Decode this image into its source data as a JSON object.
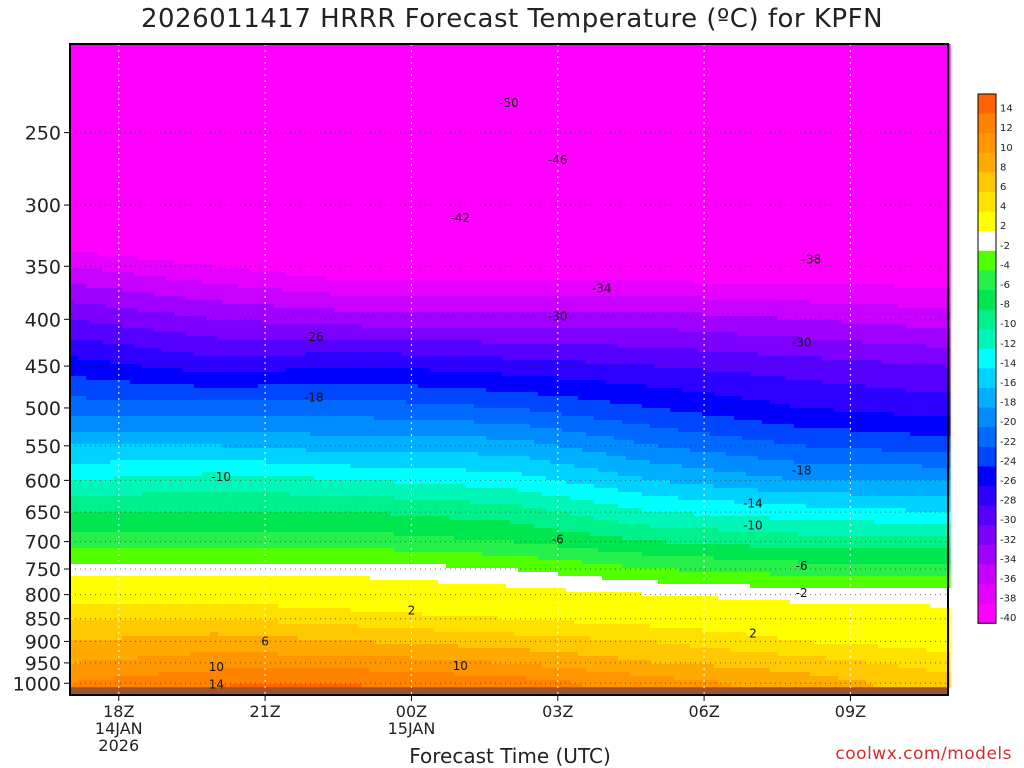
{
  "chart_data": {
    "type": "heatmap",
    "title": "2026011417 HRRR Forecast Temperature (ºC) for KPFN",
    "xlabel": "Forecast Time (UTC)",
    "ylabel": "",
    "x_ticks": [
      {
        "hour": 1,
        "lines": [
          "18Z",
          "14JAN",
          "2026"
        ]
      },
      {
        "hour": 4,
        "lines": [
          "21Z"
        ]
      },
      {
        "hour": 7,
        "lines": [
          "00Z",
          "15JAN"
        ]
      },
      {
        "hour": 10,
        "lines": [
          "03Z"
        ]
      },
      {
        "hour": 13,
        "lines": [
          "06Z"
        ]
      },
      {
        "hour": 16,
        "lines": [
          "09Z"
        ]
      }
    ],
    "xlim_hours": [
      0,
      18
    ],
    "y_ticks_hpa": [
      250,
      300,
      350,
      400,
      450,
      500,
      550,
      600,
      650,
      700,
      750,
      800,
      850,
      900,
      950,
      1000
    ],
    "ylim_hpa": [
      200,
      1030
    ],
    "yscale": "log-pressure",
    "ground_pressure_hpa": 1010,
    "ground_color": "#a0522d",
    "grid": "dotted",
    "legend": "colorbar-right",
    "colorbar": {
      "ticks": [
        "14",
        "12",
        "10",
        "8",
        "6",
        "4",
        "2",
        "-2",
        "-4",
        "-6",
        "-8",
        "-10",
        "-12",
        "-14",
        "-16",
        "-18",
        "-20",
        "-22",
        "-24",
        "-26",
        "-28",
        "-30",
        "-32",
        "-34",
        "-36",
        "-38",
        "-40"
      ],
      "colors": [
        "#ff6400",
        "#ff8200",
        "#ff9600",
        "#ffaa00",
        "#ffc800",
        "#ffe100",
        "#ffff00",
        "#ffffff",
        "#50ff00",
        "#28f04b",
        "#00e650",
        "#00f08c",
        "#00f5b9",
        "#00ffff",
        "#00d2ff",
        "#00afff",
        "#008cff",
        "#0069ff",
        "#0046ff",
        "#0000ff",
        "#2d00ff",
        "#5500ff",
        "#7d00ff",
        "#a000ff",
        "#c800ff",
        "#e600ff",
        "#ff00ff"
      ]
    },
    "temperature_profiles": [
      {
        "hour": 0,
        "temps": [
          [
            250,
            -52
          ],
          [
            300,
            -44
          ],
          [
            350,
            -36
          ],
          [
            400,
            -30
          ],
          [
            450,
            -25
          ],
          [
            500,
            -21
          ],
          [
            550,
            -16
          ],
          [
            600,
            -12
          ],
          [
            650,
            -8
          ],
          [
            700,
            -5
          ],
          [
            750,
            -1
          ],
          [
            800,
            3
          ],
          [
            850,
            6
          ],
          [
            900,
            8
          ],
          [
            950,
            10
          ],
          [
            1000,
            12
          ]
        ]
      },
      {
        "hour": 3,
        "temps": [
          [
            250,
            -53
          ],
          [
            300,
            -46
          ],
          [
            350,
            -38
          ],
          [
            400,
            -32
          ],
          [
            450,
            -27
          ],
          [
            500,
            -21
          ],
          [
            550,
            -16
          ],
          [
            600,
            -11
          ],
          [
            650,
            -8
          ],
          [
            700,
            -5
          ],
          [
            750,
            -1
          ],
          [
            800,
            3
          ],
          [
            850,
            6
          ],
          [
            900,
            9
          ],
          [
            950,
            11
          ],
          [
            1000,
            14
          ]
        ]
      },
      {
        "hour": 6,
        "temps": [
          [
            250,
            -54
          ],
          [
            300,
            -47
          ],
          [
            350,
            -40
          ],
          [
            400,
            -33
          ],
          [
            450,
            -26
          ],
          [
            500,
            -21
          ],
          [
            550,
            -17
          ],
          [
            600,
            -12
          ],
          [
            650,
            -8
          ],
          [
            700,
            -5
          ],
          [
            750,
            -1
          ],
          [
            800,
            2
          ],
          [
            850,
            5
          ],
          [
            900,
            8
          ],
          [
            950,
            11
          ],
          [
            1000,
            14
          ]
        ]
      },
      {
        "hour": 9,
        "temps": [
          [
            250,
            -54
          ],
          [
            300,
            -47
          ],
          [
            350,
            -40
          ],
          [
            400,
            -33
          ],
          [
            450,
            -27
          ],
          [
            500,
            -22
          ],
          [
            550,
            -17
          ],
          [
            600,
            -13
          ],
          [
            650,
            -9
          ],
          [
            700,
            -6
          ],
          [
            750,
            -2
          ],
          [
            800,
            1
          ],
          [
            850,
            4
          ],
          [
            900,
            7
          ],
          [
            950,
            10
          ],
          [
            1000,
            13
          ]
        ]
      },
      {
        "hour": 12,
        "temps": [
          [
            250,
            -54
          ],
          [
            300,
            -47
          ],
          [
            350,
            -40
          ],
          [
            400,
            -33
          ],
          [
            450,
            -28
          ],
          [
            500,
            -24
          ],
          [
            550,
            -20
          ],
          [
            600,
            -16
          ],
          [
            650,
            -12
          ],
          [
            700,
            -8
          ],
          [
            750,
            -4
          ],
          [
            800,
            0
          ],
          [
            850,
            3
          ],
          [
            900,
            6
          ],
          [
            950,
            8
          ],
          [
            1000,
            11
          ]
        ]
      },
      {
        "hour": 15,
        "temps": [
          [
            250,
            -52
          ],
          [
            300,
            -46
          ],
          [
            350,
            -40
          ],
          [
            400,
            -34
          ],
          [
            450,
            -29
          ],
          [
            500,
            -26
          ],
          [
            550,
            -22
          ],
          [
            600,
            -18
          ],
          [
            650,
            -13
          ],
          [
            700,
            -9
          ],
          [
            750,
            -5
          ],
          [
            800,
            -1
          ],
          [
            850,
            2
          ],
          [
            900,
            4
          ],
          [
            950,
            7
          ],
          [
            1000,
            9
          ]
        ]
      },
      {
        "hour": 18,
        "temps": [
          [
            250,
            -52
          ],
          [
            300,
            -46
          ],
          [
            350,
            -40
          ],
          [
            400,
            -35
          ],
          [
            450,
            -30
          ],
          [
            500,
            -27
          ],
          [
            550,
            -23
          ],
          [
            600,
            -18
          ],
          [
            650,
            -14
          ],
          [
            700,
            -9
          ],
          [
            750,
            -5
          ],
          [
            800,
            -1
          ],
          [
            850,
            1
          ],
          [
            900,
            3
          ],
          [
            950,
            5
          ],
          [
            1000,
            7
          ]
        ]
      }
    ],
    "contour_labels": [
      {
        "text": "-50",
        "hour": 9.0,
        "p": 232
      },
      {
        "text": "-46",
        "hour": 10.0,
        "p": 268
      },
      {
        "text": "-42",
        "hour": 8.0,
        "p": 310
      },
      {
        "text": "-38",
        "hour": 15.2,
        "p": 344
      },
      {
        "text": "-34",
        "hour": 10.9,
        "p": 370
      },
      {
        "text": "-30",
        "hour": 10.0,
        "p": 397
      },
      {
        "text": "-30",
        "hour": 15.0,
        "p": 424
      },
      {
        "text": "-26",
        "hour": 5.0,
        "p": 418
      },
      {
        "text": "-18",
        "hour": 5.0,
        "p": 487
      },
      {
        "text": "-18",
        "hour": 15.0,
        "p": 585
      },
      {
        "text": "-10",
        "hour": 3.1,
        "p": 595
      },
      {
        "text": "-14",
        "hour": 14.0,
        "p": 636
      },
      {
        "text": "-10",
        "hour": 14.0,
        "p": 672
      },
      {
        "text": "-6",
        "hour": 10.0,
        "p": 696
      },
      {
        "text": "-6",
        "hour": 15.0,
        "p": 744
      },
      {
        "text": "-2",
        "hour": 15.0,
        "p": 797
      },
      {
        "text": "2",
        "hour": 7.0,
        "p": 833
      },
      {
        "text": "2",
        "hour": 14.0,
        "p": 882
      },
      {
        "text": "6",
        "hour": 4.0,
        "p": 900
      },
      {
        "text": "10",
        "hour": 3.0,
        "p": 960
      },
      {
        "text": "10",
        "hour": 8.0,
        "p": 958
      },
      {
        "text": "14",
        "hour": 3.0,
        "p": 1003
      }
    ]
  },
  "credit_text": "coolwx.com/models"
}
